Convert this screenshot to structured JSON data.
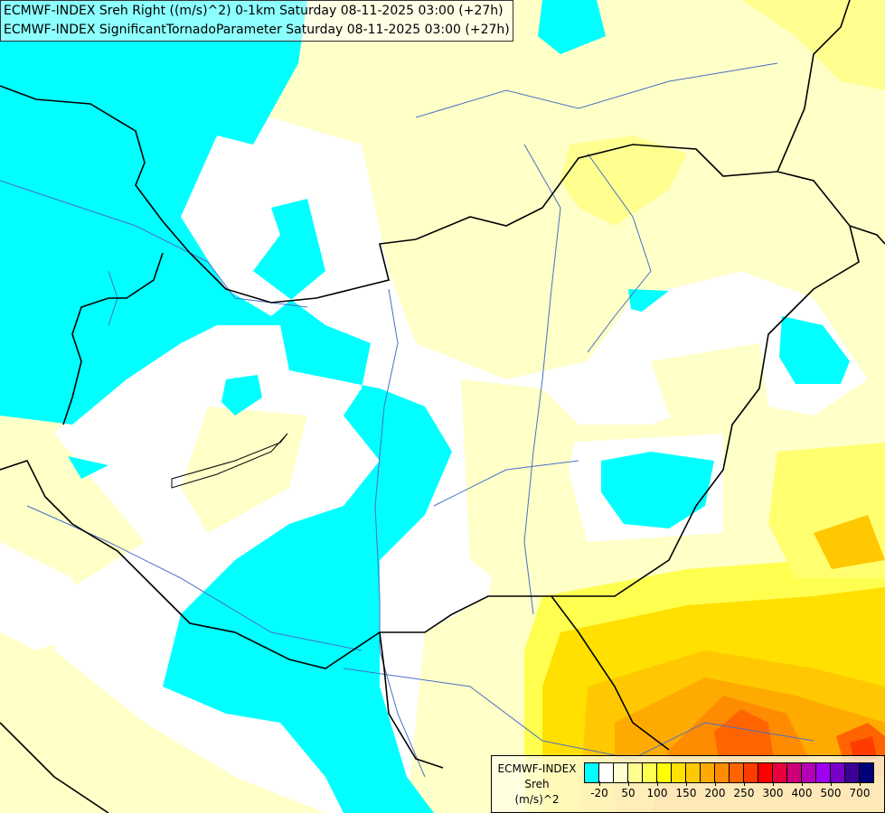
{
  "header": {
    "line1": "ECMWF-INDEX Sreh Right ((m/s)^2) 0-1km Saturday 08-11-2025 03:00 (+27h)",
    "line2": "ECMWF-INDEX SignificantTornadoParameter Saturday 08-11-2025 03:00 (+27h)"
  },
  "legend": {
    "source": "ECMWF-INDEX",
    "variable": "Sreh",
    "unit": "(m/s)^2",
    "colors": [
      "#00ffff",
      "#ffffff",
      "#ffffd0",
      "#ffff90",
      "#ffff50",
      "#ffff00",
      "#ffe000",
      "#ffc800",
      "#ffaa00",
      "#ff8c00",
      "#ff6400",
      "#ff3c00",
      "#ff0000",
      "#e6003c",
      "#cc0078",
      "#b400b4",
      "#a000f0",
      "#7800c8",
      "#3c0096",
      "#000078"
    ],
    "ticks": [
      "-20",
      "50",
      "100",
      "150",
      "200",
      "250",
      "300",
      "400",
      "500",
      "700"
    ]
  },
  "colors": {
    "border": "#000000",
    "river": "#4a6fc4",
    "low": "#00ffff",
    "neutral": "#ffffff",
    "high": "#ff6400"
  }
}
